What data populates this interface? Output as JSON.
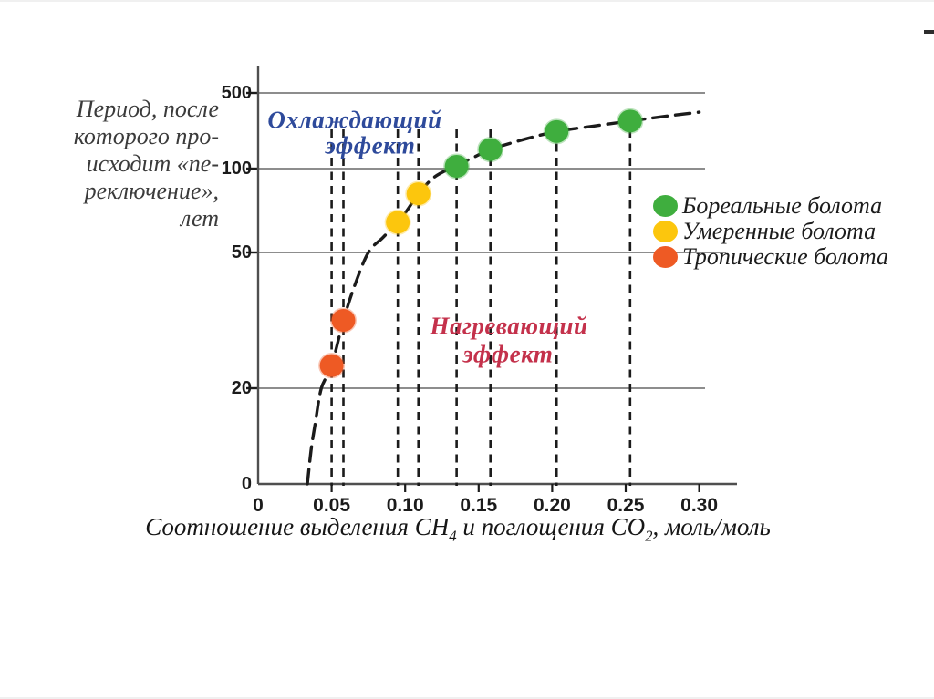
{
  "chart_data": {
    "type": "scatter",
    "title": "",
    "y_axis_title_lines": [
      "Период, после",
      "которого про-",
      "исходит «пе-",
      "реключение»,",
      "лет"
    ],
    "x_axis_title_segments": [
      {
        "text": "Соотношение выделения CH",
        "sub": false
      },
      {
        "text": "4",
        "sub": true
      },
      {
        "text": " и поглощения CO",
        "sub": false
      },
      {
        "text": "2",
        "sub": true
      },
      {
        "text": ", моль/моль",
        "sub": false
      }
    ],
    "x_ticks": [
      0,
      0.05,
      0.1,
      0.15,
      0.2,
      0.25,
      0.3
    ],
    "x_tick_labels": [
      "0",
      "0.05",
      "0.10",
      "0.15",
      "0.20",
      "0.25",
      "0.30"
    ],
    "y_ticks": [
      0,
      20,
      50,
      100,
      500
    ],
    "y_tick_labels": [
      "0",
      "20",
      "50",
      "100",
      "500"
    ],
    "y_scale_note": "non-linear: linear 0-100, log-compressed 100-500",
    "grid": "horizontal lines at y ticks, vertical dashed guide line at every data point",
    "legend_position": "right",
    "series": [
      {
        "name": "Бореальные болота",
        "color": "#3FAE3E",
        "points": [
          [
            0.135,
            105
          ],
          [
            0.158,
            150
          ],
          [
            0.203,
            220
          ],
          [
            0.253,
            275
          ]
        ]
      },
      {
        "name": "Умеренные болота",
        "color": "#FCC60D",
        "points": [
          [
            0.095,
            68
          ],
          [
            0.109,
            85
          ]
        ]
      },
      {
        "name": "Тропические болота",
        "color": "#EE5A24",
        "points": [
          [
            0.05,
            25
          ],
          [
            0.058,
            35
          ]
        ]
      }
    ],
    "trend_curve": {
      "style": "dashed",
      "color": "#1b1b1b",
      "points": [
        [
          0.0335,
          0
        ],
        [
          0.036,
          7
        ],
        [
          0.039,
          13
        ],
        [
          0.043,
          20
        ],
        [
          0.05,
          25
        ],
        [
          0.058,
          35
        ],
        [
          0.066,
          43
        ],
        [
          0.075,
          50
        ],
        [
          0.085,
          59
        ],
        [
          0.095,
          68
        ],
        [
          0.102,
          76
        ],
        [
          0.109,
          85
        ],
        [
          0.12,
          95
        ],
        [
          0.135,
          107
        ],
        [
          0.147,
          128
        ],
        [
          0.158,
          150
        ],
        [
          0.18,
          185
        ],
        [
          0.203,
          220
        ],
        [
          0.228,
          247
        ],
        [
          0.253,
          275
        ],
        [
          0.276,
          303
        ],
        [
          0.3,
          332
        ]
      ]
    },
    "annotations": [
      {
        "id": "cooling",
        "lines": [
          "Охлаждающий",
          "эффект"
        ],
        "color": "#2E4A9B"
      },
      {
        "id": "warming",
        "lines": [
          "Нагревающий",
          "эффект"
        ],
        "color": "#C4314B"
      }
    ],
    "axis_color": "#4f4f4f",
    "grid_color": "#7d7d7d"
  }
}
